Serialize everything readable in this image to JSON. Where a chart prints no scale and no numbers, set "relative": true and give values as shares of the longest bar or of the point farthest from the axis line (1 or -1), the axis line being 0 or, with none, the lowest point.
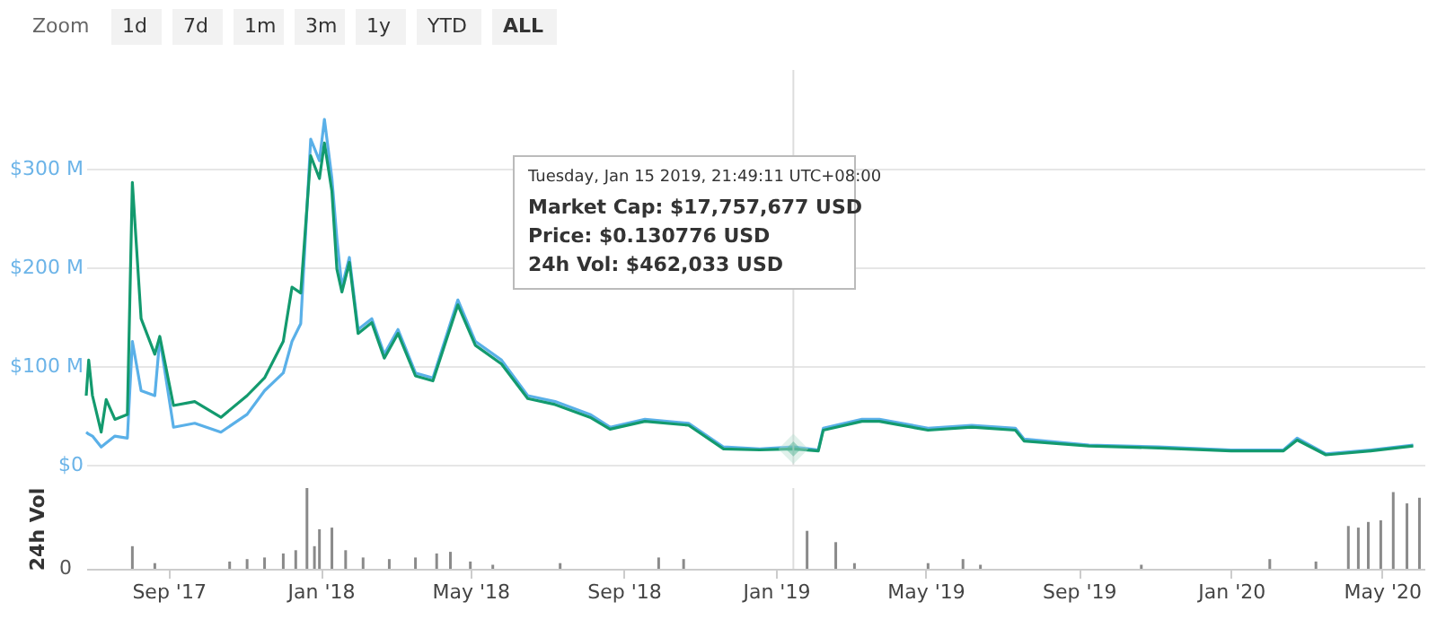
{
  "chart_data": [
    {
      "type": "line",
      "xlim": [
        "2017-06-27",
        "2020-06-04"
      ],
      "ylim": [
        0,
        400
      ],
      "yticks": [
        {
          "value": 0,
          "label": "$0"
        },
        {
          "value": 100,
          "label": "$100 M"
        },
        {
          "value": 200,
          "label": "$200 M"
        },
        {
          "value": 300,
          "label": "$300 M"
        }
      ],
      "tick_labels": "y",
      "grid": "y",
      "marker": "none",
      "line_style": "solid",
      "x": [
        "2017-06-27",
        "2017-06-29",
        "2017-07-02",
        "2017-07-09",
        "2017-07-13",
        "2017-07-20",
        "2017-07-30",
        "2017-08-03",
        "2017-08-10",
        "2017-08-21",
        "2017-08-25",
        "2017-09-05",
        "2017-09-22",
        "2017-10-13",
        "2017-11-03",
        "2017-11-17",
        "2017-12-02",
        "2017-12-09",
        "2017-12-16",
        "2017-12-24",
        "2017-12-31",
        "2018-01-04",
        "2018-01-10",
        "2018-01-14",
        "2018-01-18",
        "2018-01-24",
        "2018-01-31",
        "2018-02-11",
        "2018-02-21",
        "2018-03-04",
        "2018-03-18",
        "2018-04-01",
        "2018-04-21",
        "2018-05-05",
        "2018-05-26",
        "2018-06-16",
        "2018-07-08",
        "2018-08-05",
        "2018-08-21",
        "2018-09-18",
        "2018-10-23",
        "2018-11-20",
        "2018-12-19",
        "2019-01-15",
        "2019-02-04",
        "2019-02-08",
        "2019-03-11",
        "2019-03-25",
        "2019-05-03",
        "2019-06-07",
        "2019-07-12",
        "2019-07-19",
        "2019-09-09",
        "2019-11-04",
        "2020-01-01",
        "2020-02-12",
        "2020-02-23",
        "2020-03-17",
        "2020-04-22",
        "2020-05-26"
      ],
      "series": [
        {
          "color": "#5ab0e8",
          "values": [
            33,
            31,
            29,
            18,
            22,
            29,
            27,
            125,
            75,
            70,
            128,
            38,
            42,
            33,
            51,
            75,
            93,
            125,
            143,
            330,
            308,
            350,
            290,
            229,
            180,
            210,
            137,
            148,
            112,
            137,
            93,
            88,
            167,
            125,
            106,
            70,
            64,
            51,
            38,
            46,
            42,
            18,
            16,
            18,
            15,
            37,
            46,
            46,
            37,
            40,
            37,
            26,
            20,
            18,
            15,
            15,
            27,
            11,
            15,
            20
          ]
        },
        {
          "color": "#139a6e",
          "values": [
            70,
            106,
            70,
            33,
            66,
            46,
            51,
            286,
            148,
            112,
            130,
            60,
            64,
            48,
            70,
            88,
            125,
            180,
            174,
            313,
            290,
            326,
            277,
            198,
            175,
            205,
            133,
            144,
            108,
            133,
            90,
            85,
            162,
            121,
            102,
            67,
            61,
            48,
            36,
            44,
            40,
            16,
            15,
            16,
            14,
            35,
            44,
            44,
            35,
            38,
            35,
            24,
            19,
            17,
            14,
            14,
            25,
            10,
            14,
            19
          ]
        }
      ],
      "ref_lines": [
        {
          "axis": "x",
          "value": "2019-01-15",
          "color": "#dddddd"
        }
      ],
      "annotations": [
        "Zoom",
        "1d",
        "7d",
        "1m",
        "3m",
        "1y",
        "YTD",
        "ALL",
        "Tuesday, Jan 15 2019, 21:49:11 UTC+08:00",
        "Market Cap: $17,757,677 USD",
        "Price: $0.130776 USD",
        "24h Vol: $462,033 USD"
      ]
    },
    {
      "type": "bar",
      "relative": true,
      "ylabel": "24h Vol",
      "xlim": [
        "2017-06-27",
        "2020-06-04"
      ],
      "grid": false,
      "xticks": [
        {
          "value": "2017-09-01",
          "label": "Sep '17"
        },
        {
          "value": "2018-01-01",
          "label": "Jan '18"
        },
        {
          "value": "2018-05-01",
          "label": "May '18"
        },
        {
          "value": "2018-09-01",
          "label": "Sep '18"
        },
        {
          "value": "2019-01-01",
          "label": "Jan '19"
        },
        {
          "value": "2019-05-01",
          "label": "May '19"
        },
        {
          "value": "2019-09-01",
          "label": "Sep '19"
        },
        {
          "value": "2020-01-01",
          "label": "Jan '20"
        },
        {
          "value": "2020-05-01",
          "label": "May '20"
        }
      ],
      "x": [
        "2017-08-03",
        "2017-08-21",
        "2017-10-20",
        "2017-11-03",
        "2017-11-17",
        "2017-12-02",
        "2017-12-12",
        "2017-12-21",
        "2017-12-27",
        "2017-12-31",
        "2018-01-10",
        "2018-01-21",
        "2018-02-04",
        "2018-02-25",
        "2018-03-18",
        "2018-04-04",
        "2018-04-15",
        "2018-05-01",
        "2018-05-19",
        "2018-07-12",
        "2018-09-29",
        "2018-10-19",
        "2019-01-26",
        "2019-02-18",
        "2019-03-05",
        "2019-05-03",
        "2019-05-31",
        "2019-06-14",
        "2019-10-21",
        "2020-02-01",
        "2020-03-09",
        "2020-04-04",
        "2020-04-12",
        "2020-04-20",
        "2020-04-30",
        "2020-05-10",
        "2020-05-21",
        "2020-05-31"
      ],
      "color": "#8a8a8a",
      "values": [
        0.28,
        0.07,
        0.09,
        0.12,
        0.14,
        0.19,
        0.23,
        1,
        0.28,
        0.49,
        0.51,
        0.23,
        0.14,
        0.12,
        0.14,
        0.19,
        0.21,
        0.09,
        0.05,
        0.07,
        0.14,
        0.12,
        0.47,
        0.33,
        0.07,
        0.07,
        0.12,
        0.05,
        0.05,
        0.12,
        0.09,
        0.53,
        0.51,
        0.58,
        0.6,
        0.95,
        0.81,
        0.88
      ],
      "ref_lines": [
        {
          "axis": "x",
          "value": "2019-01-15",
          "color": "#dddddd"
        }
      ],
      "annotations": [
        "0"
      ]
    }
  ]
}
